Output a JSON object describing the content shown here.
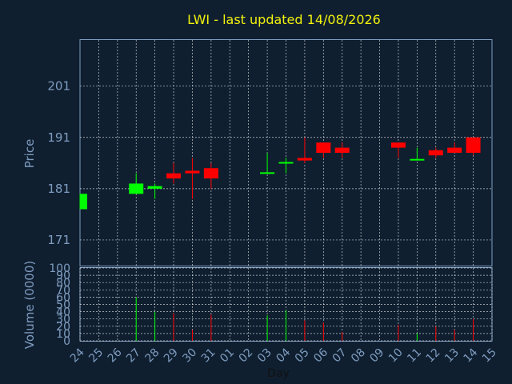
{
  "chart_data": {
    "type": "candlestick",
    "title": "LWI - last updated 14/08/2026",
    "ylabel": "Price",
    "volume_label": "Volume (0000)",
    "xlabel": "Day",
    "x_ticks": [
      "24",
      "25",
      "26",
      "27",
      "28",
      "29",
      "30",
      "31",
      "01",
      "02",
      "03",
      "04",
      "05",
      "06",
      "07",
      "08",
      "09",
      "10",
      "11",
      "12",
      "13",
      "14",
      "15"
    ],
    "price_ticks": [
      171,
      181,
      191,
      201
    ],
    "price_range": [
      166,
      210
    ],
    "volume_ticks": [
      0,
      10,
      20,
      30,
      40,
      50,
      60,
      70,
      80,
      90,
      100
    ],
    "volume_range": [
      0,
      100
    ],
    "grid": true,
    "colors": {
      "up": "#00ff00",
      "down": "#ff0000",
      "title": "#f2f20c",
      "axis": "#7f9cbf",
      "background": "#0f1f30"
    },
    "candles": [
      {
        "day": "24",
        "open": 177,
        "high": 180,
        "low": 177,
        "close": 180,
        "volume": 0
      },
      {
        "day": "27",
        "open": 180,
        "high": 184,
        "low": 180,
        "close": 182,
        "volume": 60
      },
      {
        "day": "28",
        "open": 181,
        "high": 182,
        "low": 179,
        "close": 181.5,
        "volume": 40
      },
      {
        "day": "29",
        "open": 184,
        "high": 186,
        "low": 182,
        "close": 183,
        "volume": 38
      },
      {
        "day": "30",
        "open": 184.5,
        "high": 187,
        "low": 179,
        "close": 184,
        "volume": 15
      },
      {
        "day": "31",
        "open": 185,
        "high": 186,
        "low": 181,
        "close": 183,
        "volume": 36
      },
      {
        "day": "03",
        "open": 184,
        "high": 188,
        "low": 184,
        "close": 184.2,
        "volume": 35
      },
      {
        "day": "04",
        "open": 186,
        "high": 187,
        "low": 184,
        "close": 186.2,
        "volume": 42
      },
      {
        "day": "05",
        "open": 187,
        "high": 191,
        "low": 186,
        "close": 186.5,
        "volume": 28
      },
      {
        "day": "06",
        "open": 190,
        "high": 190,
        "low": 187,
        "close": 188,
        "volume": 25
      },
      {
        "day": "07",
        "open": 189,
        "high": 190,
        "low": 187,
        "close": 188,
        "volume": 12
      },
      {
        "day": "10",
        "open": 190,
        "high": 190,
        "low": 187,
        "close": 189,
        "volume": 22
      },
      {
        "day": "11",
        "open": 186.5,
        "high": 189,
        "low": 186.5,
        "close": 186.8,
        "volume": 10
      },
      {
        "day": "12",
        "open": 188.5,
        "high": 189,
        "low": 187,
        "close": 187.5,
        "volume": 20
      },
      {
        "day": "13",
        "open": 189,
        "high": 190,
        "low": 188,
        "close": 188,
        "volume": 15
      },
      {
        "day": "14",
        "open": 191,
        "high": 191,
        "low": 187.5,
        "close": 188,
        "volume": 30
      }
    ]
  }
}
